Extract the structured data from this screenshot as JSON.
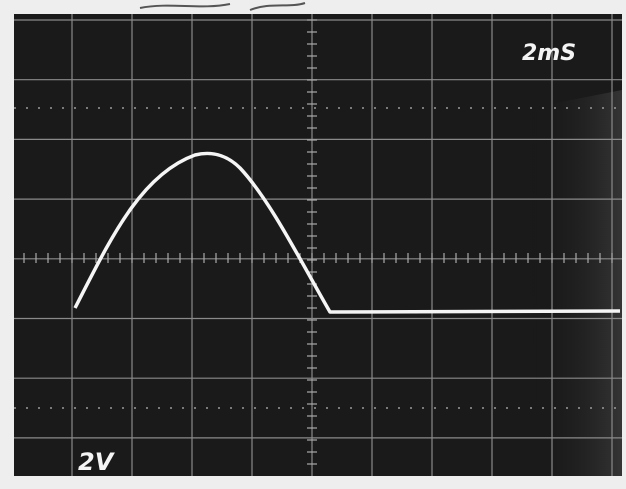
{
  "screen": {
    "timebase": "2mS",
    "volts_per_div": "2V"
  }
}
